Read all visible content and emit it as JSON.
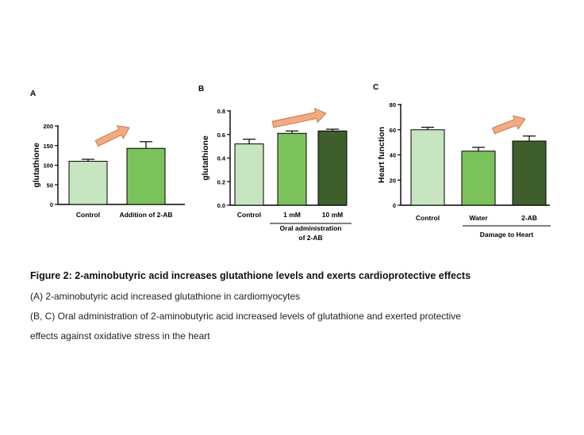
{
  "panels": [
    {
      "letter": "A",
      "ylabel": "glutathione",
      "yticks": [
        "0",
        "50",
        "100",
        "150",
        "200"
      ],
      "categories": [
        "Control",
        "Addition of 2-AB"
      ],
      "group_label": ""
    },
    {
      "letter": "B",
      "ylabel": "glutathione",
      "yticks": [
        "0.0",
        "0.2",
        "0.4",
        "0.6",
        "0.8"
      ],
      "categories": [
        "Control",
        "1 mM",
        "10 mM"
      ],
      "group_label": [
        "Oral administration",
        "of 2-AB"
      ]
    },
    {
      "letter": "C",
      "ylabel": "Heart function",
      "yticks": [
        "0",
        "20",
        "40",
        "60",
        "80"
      ],
      "categories": [
        "Control",
        "Water",
        "2-AB"
      ],
      "group_label": [
        "Damage to Heart"
      ]
    }
  ],
  "chart_data": [
    {
      "type": "bar",
      "categories": [
        "Control",
        "Addition of 2-AB"
      ],
      "values": [
        110,
        143
      ],
      "errors": [
        5,
        17
      ],
      "ylabel": "glutathione",
      "ylim": [
        0,
        200
      ],
      "colors": [
        "#c6e5c0",
        "#7cc25b"
      ]
    },
    {
      "type": "bar",
      "categories": [
        "Control",
        "1 mM",
        "10 mM"
      ],
      "values": [
        0.52,
        0.61,
        0.63
      ],
      "errors": [
        0.04,
        0.02,
        0.015
      ],
      "ylabel": "glutathione",
      "ylim": [
        0,
        0.8
      ],
      "colors": [
        "#c6e5c0",
        "#7cc25b",
        "#3e5f2b"
      ]
    },
    {
      "type": "bar",
      "categories": [
        "Control",
        "Water",
        "2-AB"
      ],
      "values": [
        60,
        43,
        51
      ],
      "errors": [
        2,
        3,
        4
      ],
      "ylabel": "Heart function",
      "ylim": [
        0,
        80
      ],
      "colors": [
        "#c6e5c0",
        "#7cc25b",
        "#3e5f2b"
      ]
    }
  ],
  "caption": {
    "title": "Figure 2: 2-aminobutyric acid increases glutathione levels and exerts cardioprotective effects",
    "line1": "(A) 2-aminobutyric acid increased glutathione in cardiomyocytes",
    "line2": "(B, C) Oral administration of 2-aminobutyric acid increased levels of glutathione and exerted protective",
    "line3": "effects against oxidative stress in the heart"
  },
  "arrow_color": "#f5a97d"
}
